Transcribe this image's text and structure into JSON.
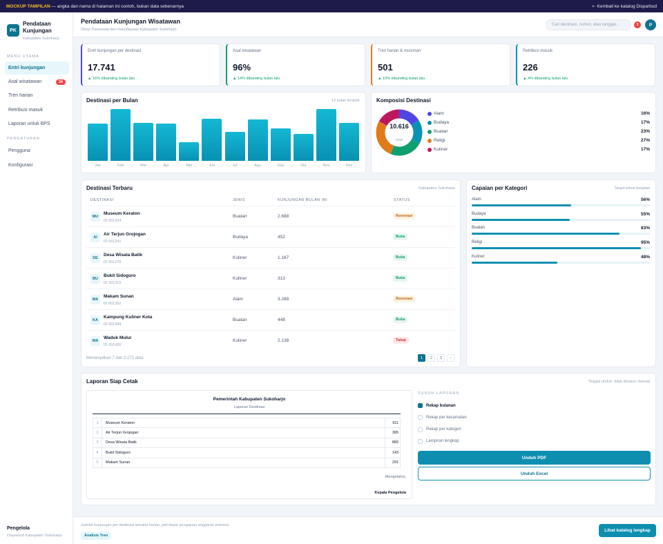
{
  "banner": {
    "tag": "MOCKUP TAMPILAN",
    "text": " — angka dan nama di halaman ini contoh, bukan data sebenarnya",
    "back_label": "⇠ Kembali ke katalog Disparbud"
  },
  "sidebar": {
    "logo": "PK",
    "brand": "Pendataan Kunjungan",
    "brand_sub": "Kabupaten Sukoharjo",
    "section_main": "MENU UTAMA",
    "section_settings": "PENGATURAN",
    "items": [
      {
        "label": "Entri kunjungan",
        "badge": ""
      },
      {
        "label": "Asal wisatawan",
        "badge": "34"
      },
      {
        "label": "Tren harian",
        "badge": ""
      },
      {
        "label": "Retribusi masuk",
        "badge": ""
      },
      {
        "label": "Laporan untuk BPS",
        "badge": ""
      },
      {
        "label": "Pengguna",
        "badge": ""
      },
      {
        "label": "Konfigurasi",
        "badge": ""
      }
    ],
    "footer_name": "Pengelola",
    "footer_org": "Disparbud Kabupaten Sukoharjo"
  },
  "header": {
    "title": "Pendataan Kunjungan Wisatawan",
    "subtitle": "Dinas Pariwisata dan Kebudayaan Kabupaten Sukoharjo",
    "search_placeholder": "Cari destinasi, nomor, atau tanggal...",
    "notif_count": "3",
    "avatar": "P"
  },
  "kpis": [
    {
      "label": "Entri kunjungan per destinasi",
      "value": "17.741",
      "change": "▲ 16% dibanding bulan lalu",
      "accent": "#4f46e5"
    },
    {
      "label": "Asal wisatawan",
      "value": "96%",
      "change": "▲ 14% dibanding bulan lalu",
      "accent": "#0f9f6e"
    },
    {
      "label": "Tren harian & musiman",
      "value": "501",
      "change": "▲ 10% dibanding bulan lalu",
      "accent": "#e07b1a"
    },
    {
      "label": "Retribusi masuk",
      "value": "226",
      "change": "▲ 4% dibanding bulan lalu",
      "accent": "#0891b2"
    }
  ],
  "chart_data": [
    {
      "type": "bar",
      "title": "Destinasi per Bulan",
      "note": "12 bulan terakhir",
      "categories": [
        "Jan",
        "Feb",
        "Mar",
        "Apr",
        "Mei",
        "Jun",
        "Jul",
        "Agu",
        "Sep",
        "Okt",
        "Nov",
        "Des"
      ],
      "values": [
        72,
        100,
        74,
        72,
        36,
        82,
        56,
        80,
        63,
        52,
        100,
        73
      ],
      "ylim": [
        0,
        100
      ]
    },
    {
      "type": "pie",
      "title": "Komposisi Destinasi",
      "center_value": "10.616",
      "center_label": "total",
      "series": [
        {
          "name": "Alam",
          "value": 16,
          "label": "16%",
          "color": "#4f46e5"
        },
        {
          "name": "Budaya",
          "value": 17,
          "label": "17%",
          "color": "#0891b2"
        },
        {
          "name": "Buatan",
          "value": 23,
          "label": "23%",
          "color": "#0f9f6e"
        },
        {
          "name": "Religi",
          "value": 27,
          "label": "27%",
          "color": "#e07b1a"
        },
        {
          "name": "Kuliner",
          "value": 17,
          "label": "17%",
          "color": "#be185d"
        }
      ]
    }
  ],
  "table": {
    "title": "Destinasi Terbaru",
    "note": "Kabupaten Sukoharjo",
    "columns": [
      "DESTINASI",
      "JENIS",
      "KUNJUNGAN BULAN INI",
      "STATUS"
    ],
    "rows": [
      {
        "ini": "MU",
        "name": "Museum Keraton",
        "id": "ID 001204",
        "jenis": "Buatan",
        "kunjungan": "2.688",
        "status": "Renovasi",
        "cls": "ren"
      },
      {
        "ini": "AI",
        "name": "Air Terjun Grojogan",
        "id": "ID 001241",
        "jenis": "Budaya",
        "kunjungan": "452",
        "status": "Buka",
        "cls": "buka"
      },
      {
        "ini": "DE",
        "name": "Desa Wisata Batik",
        "id": "ID 001278",
        "jenis": "Kuliner",
        "kunjungan": "1.167",
        "status": "Buka",
        "cls": "buka"
      },
      {
        "ini": "BU",
        "name": "Bukit Sidoguro",
        "id": "ID 001315",
        "jenis": "Kuliner",
        "kunjungan": "313",
        "status": "Buka",
        "cls": "buka"
      },
      {
        "ini": "MA",
        "name": "Makam Sunan",
        "id": "ID 001352",
        "jenis": "Alam",
        "kunjungan": "3.288",
        "status": "Renovasi",
        "cls": "ren"
      },
      {
        "ini": "KA",
        "name": "Kampung Kuliner Kota",
        "id": "ID 001389",
        "jenis": "Buatan",
        "kunjungan": "448",
        "status": "Buka",
        "cls": "buka"
      },
      {
        "ini": "WA",
        "name": "Waduk Mulur",
        "id": "ID 001426",
        "jenis": "Kuliner",
        "kunjungan": "2.138",
        "status": "Tutup",
        "cls": "tut"
      }
    ],
    "showing": "Menampilkan 7 dari 2.272 data",
    "pages": [
      "1",
      "2",
      "3",
      "›"
    ]
  },
  "capaian": {
    "title": "Capaian per Kategori",
    "note": "Target tahun berjalan",
    "items": [
      {
        "label": "Alam",
        "pct": "56%",
        "value": 56
      },
      {
        "label": "Budaya",
        "pct": "55%",
        "value": 55
      },
      {
        "label": "Buatan",
        "pct": "83%",
        "value": 83
      },
      {
        "label": "Religi",
        "pct": "95%",
        "value": 95
      },
      {
        "label": "Kuliner",
        "pct": "48%",
        "value": 48
      }
    ]
  },
  "report": {
    "title": "Laporan Siap Cetak",
    "note": "Tinggal unduh, tidak disusun manual",
    "doc_title": "Pemerintah Kabupaten Sukoharjo",
    "doc_sub": "Laporan Destinasi",
    "rows": [
      {
        "no": "1",
        "name": "Museum Keraton",
        "value": "911"
      },
      {
        "no": "2",
        "name": "Air Terjun Grojogan",
        "value": "365"
      },
      {
        "no": "3",
        "name": "Desa Wisata Batik",
        "value": "883"
      },
      {
        "no": "4",
        "name": "Bukit Sidoguro",
        "value": "143"
      },
      {
        "no": "5",
        "name": "Makam Sunan",
        "value": "291"
      }
    ],
    "mengetahui": "Mengetahui,",
    "signer": "Kepala Pengelola",
    "options_title": "SUSUN LAPORAN",
    "options": [
      {
        "label": "Rekap bulanan",
        "checked": true
      },
      {
        "label": "Rekap per kecamatan",
        "checked": false
      },
      {
        "label": "Rekap per kategori",
        "checked": false
      },
      {
        "label": "Lampiran lengkap",
        "checked": false
      }
    ],
    "pdf_label": "Unduh PDF",
    "excel_label": "Unduh Excel"
  },
  "footer": {
    "text": "Jumlah kunjungan per destinasi tercatat harian, jadi dasar pengajuan anggaran promosi.",
    "chip": "Analisis Tren",
    "button": "Lihat katalog lengkap"
  }
}
